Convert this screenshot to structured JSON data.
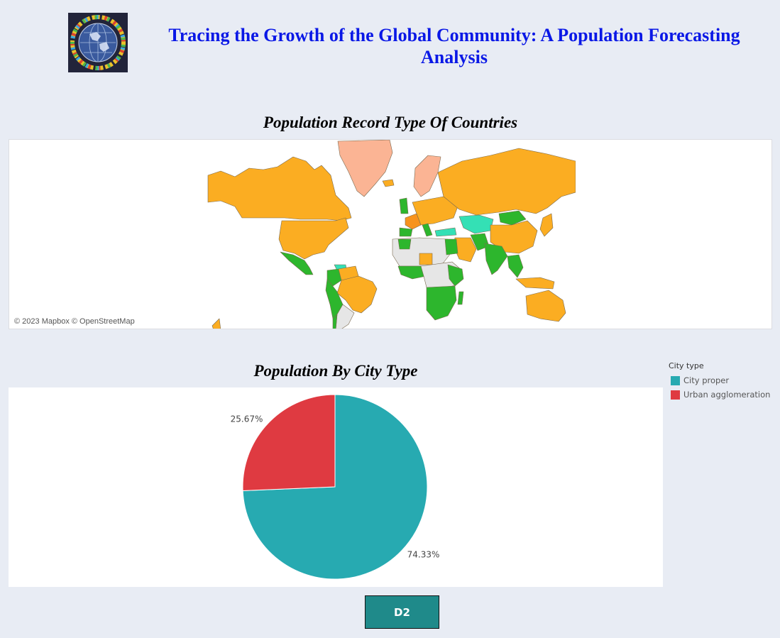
{
  "header": {
    "title": "Tracing the Growth of the Global Community: A Population Forecasting Analysis",
    "logo_icon": "globe-people-logo"
  },
  "map_section": {
    "title": "Population Record Type Of Countries",
    "attribution": "© 2023 Mapbox © OpenStreetMap",
    "colors": {
      "orange": "#fbad22",
      "dark_orange": "#f7931e",
      "green": "#2db62d",
      "turquoise": "#34e0b5",
      "salmon": "#fbb494",
      "no_data": "#e6e6e6"
    }
  },
  "pie_section": {
    "title": "Population By City Type",
    "legend_title": "City type"
  },
  "chart_data": {
    "type": "pie",
    "title": "Population By City Type",
    "legend_title": "City type",
    "legend_placement": "right",
    "slices": [
      {
        "name": "City proper",
        "value": 74.33,
        "label": "74.33%",
        "color": "#27aab1"
      },
      {
        "name": "Urban agglomeration",
        "value": 25.67,
        "label": "25.67%",
        "color": "#df3a41"
      }
    ]
  },
  "footer": {
    "button_label": "D2"
  }
}
